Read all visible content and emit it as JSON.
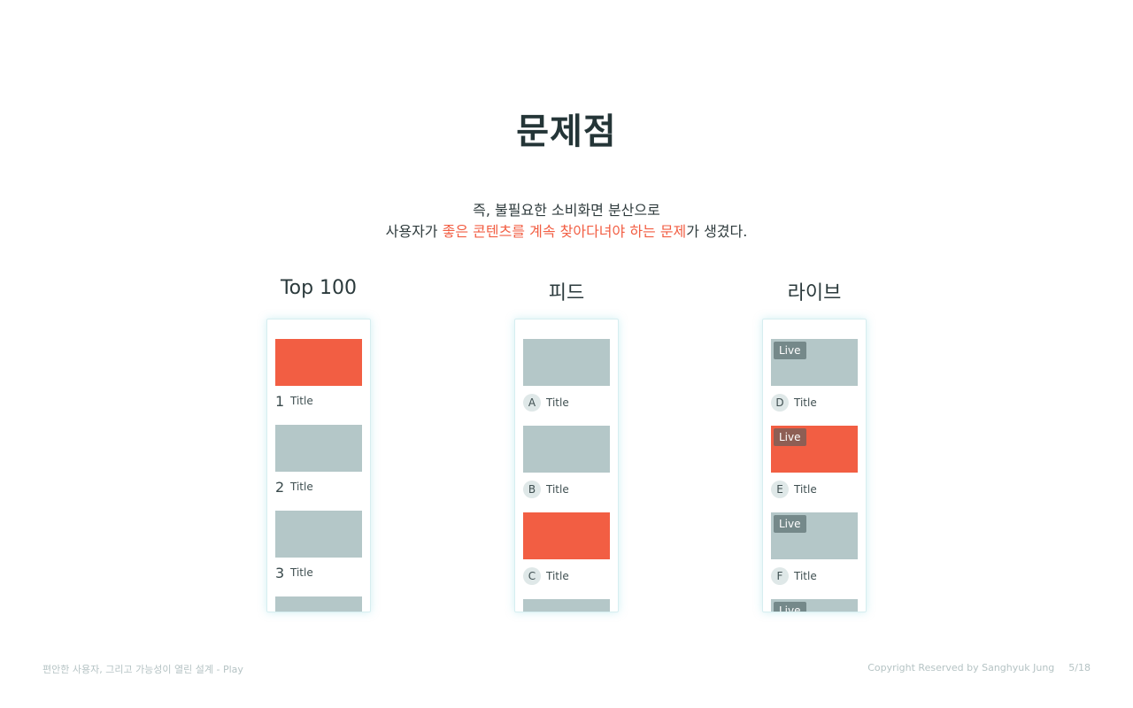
{
  "slide": {
    "title": "문제점",
    "subtitle_line1": "즉, 불필요한 소비화면 분산으로",
    "subtitle_line2_prefix": "사용자가 ",
    "subtitle_line2_highlight": "좋은 콘텐츠를 계속 찾아다녀야 하는 문제",
    "subtitle_line2_suffix": "가 생겼다.",
    "highlight_color": "#f25e43"
  },
  "columns": {
    "top100": {
      "label": "Top 100",
      "items": [
        {
          "rank": "1",
          "title": "Title",
          "thumb": "red"
        },
        {
          "rank": "2",
          "title": "Title",
          "thumb": "gray"
        },
        {
          "rank": "3",
          "title": "Title",
          "thumb": "gray"
        }
      ]
    },
    "feed": {
      "label": "피드",
      "items": [
        {
          "badge": "A",
          "title": "Title",
          "thumb": "gray"
        },
        {
          "badge": "B",
          "title": "Title",
          "thumb": "gray"
        },
        {
          "badge": "C",
          "title": "Title",
          "thumb": "red"
        }
      ]
    },
    "live": {
      "label": "라이브",
      "live_label": "Live",
      "items": [
        {
          "badge": "D",
          "title": "Title",
          "thumb": "gray"
        },
        {
          "badge": "E",
          "title": "Title",
          "thumb": "red"
        },
        {
          "badge": "F",
          "title": "Title",
          "thumb": "gray"
        }
      ]
    }
  },
  "footer": {
    "left": "편안한 사용자, 그리고 가능성이 열린 설계 - Play",
    "copyright": "Copyright Reserved by Sanghyuk Jung",
    "page": "5/18"
  }
}
